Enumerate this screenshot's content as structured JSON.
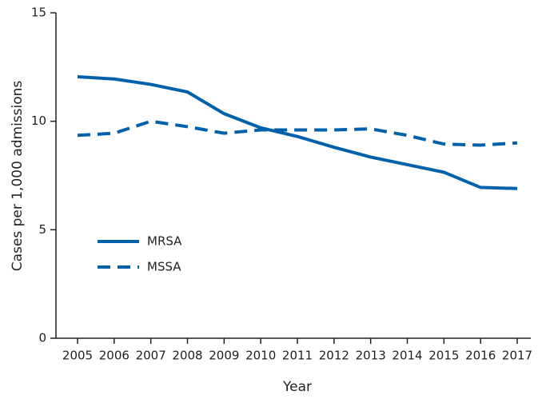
{
  "chart_data": {
    "type": "line",
    "x_label": "Year",
    "y_label": "Cases per 1,000 admissions",
    "categories": [
      "2005",
      "2006",
      "2007",
      "2008",
      "2009",
      "2010",
      "2011",
      "2012",
      "2013",
      "2014",
      "2015",
      "2016",
      "2017"
    ],
    "series": [
      {
        "name": "MRSA",
        "color": "#0061aa",
        "dash": "solid",
        "values": [
          12.05,
          11.95,
          11.7,
          11.35,
          10.35,
          9.7,
          9.3,
          8.8,
          8.35,
          8.0,
          7.65,
          6.95,
          6.9
        ]
      },
      {
        "name": "MSSA",
        "color": "#0061aa",
        "dash": "dashed",
        "values": [
          9.35,
          9.45,
          10.0,
          9.75,
          9.45,
          9.6,
          9.6,
          9.6,
          9.65,
          9.35,
          8.95,
          8.9,
          9.0
        ]
      }
    ],
    "ylim": [
      0,
      15
    ],
    "yticks": [
      0,
      5,
      10,
      15
    ],
    "grid": false,
    "legend": "left"
  }
}
